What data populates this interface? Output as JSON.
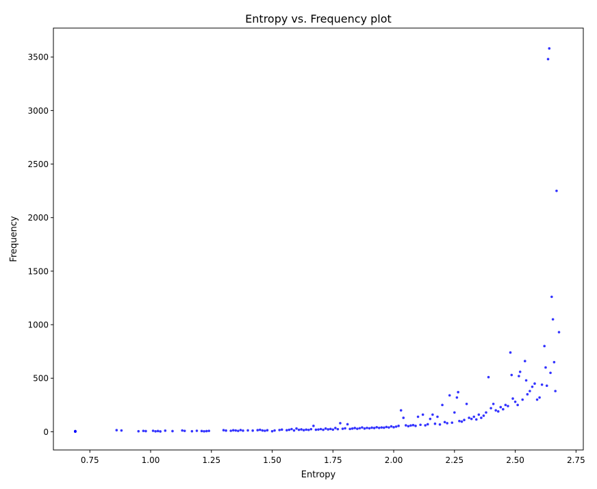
{
  "chart_data": {
    "type": "scatter",
    "title": "Entropy vs. Frequency plot",
    "xlabel": "Entropy",
    "ylabel": "Frequency",
    "xlim": [
      0.6,
      2.78
    ],
    "ylim": [
      -170,
      3770
    ],
    "xticks": [
      0.75,
      1.0,
      1.25,
      1.5,
      1.75,
      2.0,
      2.25,
      2.5,
      2.75
    ],
    "xtick_labels": [
      "0.75",
      "1.00",
      "1.25",
      "1.50",
      "1.75",
      "2.00",
      "2.25",
      "2.50",
      "2.75"
    ],
    "yticks": [
      0,
      500,
      1000,
      1500,
      2000,
      2500,
      3000,
      3500
    ],
    "ytick_labels": [
      "0",
      "500",
      "1000",
      "1500",
      "2000",
      "2500",
      "3000",
      "3500"
    ],
    "grid": false,
    "legend": "none",
    "marker_color": "#0000ff",
    "points": [
      [
        0.69,
        1
      ],
      [
        0.69,
        2
      ],
      [
        0.69,
        3
      ],
      [
        0.69,
        4
      ],
      [
        0.69,
        5
      ],
      [
        0.69,
        6
      ],
      [
        0.86,
        15
      ],
      [
        0.88,
        12
      ],
      [
        0.95,
        5
      ],
      [
        0.97,
        8
      ],
      [
        0.98,
        6
      ],
      [
        1.01,
        9
      ],
      [
        1.02,
        4
      ],
      [
        1.03,
        7
      ],
      [
        1.04,
        3
      ],
      [
        1.06,
        10
      ],
      [
        1.09,
        6
      ],
      [
        1.13,
        12
      ],
      [
        1.14,
        8
      ],
      [
        1.17,
        5
      ],
      [
        1.19,
        9
      ],
      [
        1.21,
        7
      ],
      [
        1.22,
        4
      ],
      [
        1.23,
        6
      ],
      [
        1.24,
        8
      ],
      [
        1.3,
        15
      ],
      [
        1.31,
        11
      ],
      [
        1.33,
        9
      ],
      [
        1.34,
        14
      ],
      [
        1.35,
        12
      ],
      [
        1.36,
        8
      ],
      [
        1.37,
        16
      ],
      [
        1.38,
        10
      ],
      [
        1.4,
        13
      ],
      [
        1.42,
        11
      ],
      [
        1.44,
        15
      ],
      [
        1.45,
        18
      ],
      [
        1.46,
        12
      ],
      [
        1.47,
        9
      ],
      [
        1.48,
        14
      ],
      [
        1.5,
        5
      ],
      [
        1.51,
        12
      ],
      [
        1.53,
        16
      ],
      [
        1.54,
        20
      ],
      [
        1.56,
        14
      ],
      [
        1.57,
        18
      ],
      [
        1.58,
        25
      ],
      [
        1.59,
        12
      ],
      [
        1.6,
        30
      ],
      [
        1.61,
        18
      ],
      [
        1.62,
        22
      ],
      [
        1.63,
        15
      ],
      [
        1.64,
        20
      ],
      [
        1.65,
        17
      ],
      [
        1.66,
        24
      ],
      [
        1.67,
        55
      ],
      [
        1.68,
        19
      ],
      [
        1.69,
        21
      ],
      [
        1.7,
        25
      ],
      [
        1.71,
        18
      ],
      [
        1.72,
        30
      ],
      [
        1.73,
        22
      ],
      [
        1.74,
        26
      ],
      [
        1.75,
        20
      ],
      [
        1.76,
        35
      ],
      [
        1.77,
        24
      ],
      [
        1.78,
        80
      ],
      [
        1.79,
        28
      ],
      [
        1.8,
        32
      ],
      [
        1.81,
        70
      ],
      [
        1.82,
        26
      ],
      [
        1.83,
        30
      ],
      [
        1.84,
        35
      ],
      [
        1.85,
        28
      ],
      [
        1.86,
        33
      ],
      [
        1.87,
        40
      ],
      [
        1.88,
        30
      ],
      [
        1.89,
        36
      ],
      [
        1.9,
        32
      ],
      [
        1.91,
        38
      ],
      [
        1.92,
        35
      ],
      [
        1.93,
        42
      ],
      [
        1.94,
        36
      ],
      [
        1.95,
        40
      ],
      [
        1.96,
        38
      ],
      [
        1.97,
        45
      ],
      [
        1.98,
        40
      ],
      [
        1.99,
        50
      ],
      [
        2.0,
        42
      ],
      [
        2.01,
        48
      ],
      [
        2.02,
        55
      ],
      [
        2.03,
        200
      ],
      [
        2.04,
        130
      ],
      [
        2.05,
        60
      ],
      [
        2.06,
        52
      ],
      [
        2.07,
        58
      ],
      [
        2.08,
        62
      ],
      [
        2.09,
        55
      ],
      [
        2.1,
        140
      ],
      [
        2.11,
        65
      ],
      [
        2.12,
        160
      ],
      [
        2.13,
        60
      ],
      [
        2.14,
        70
      ],
      [
        2.15,
        120
      ],
      [
        2.16,
        160
      ],
      [
        2.17,
        75
      ],
      [
        2.18,
        140
      ],
      [
        2.19,
        68
      ],
      [
        2.2,
        250
      ],
      [
        2.21,
        90
      ],
      [
        2.22,
        80
      ],
      [
        2.23,
        340
      ],
      [
        2.24,
        85
      ],
      [
        2.25,
        180
      ],
      [
        2.26,
        320
      ],
      [
        2.265,
        370
      ],
      [
        2.27,
        100
      ],
      [
        2.28,
        95
      ],
      [
        2.29,
        110
      ],
      [
        2.3,
        260
      ],
      [
        2.31,
        130
      ],
      [
        2.32,
        120
      ],
      [
        2.33,
        140
      ],
      [
        2.34,
        115
      ],
      [
        2.35,
        160
      ],
      [
        2.36,
        130
      ],
      [
        2.37,
        150
      ],
      [
        2.38,
        180
      ],
      [
        2.39,
        510
      ],
      [
        2.4,
        220
      ],
      [
        2.41,
        260
      ],
      [
        2.42,
        200
      ],
      [
        2.43,
        190
      ],
      [
        2.44,
        230
      ],
      [
        2.45,
        210
      ],
      [
        2.46,
        250
      ],
      [
        2.47,
        240
      ],
      [
        2.48,
        740
      ],
      [
        2.485,
        530
      ],
      [
        2.49,
        310
      ],
      [
        2.5,
        280
      ],
      [
        2.51,
        250
      ],
      [
        2.515,
        520
      ],
      [
        2.52,
        560
      ],
      [
        2.53,
        300
      ],
      [
        2.54,
        660
      ],
      [
        2.545,
        480
      ],
      [
        2.55,
        350
      ],
      [
        2.56,
        380
      ],
      [
        2.57,
        420
      ],
      [
        2.58,
        450
      ],
      [
        2.59,
        300
      ],
      [
        2.6,
        320
      ],
      [
        2.61,
        440
      ],
      [
        2.62,
        800
      ],
      [
        2.625,
        600
      ],
      [
        2.63,
        430
      ],
      [
        2.635,
        3480
      ],
      [
        2.64,
        3580
      ],
      [
        2.645,
        550
      ],
      [
        2.65,
        1260
      ],
      [
        2.655,
        1050
      ],
      [
        2.66,
        650
      ],
      [
        2.665,
        380
      ],
      [
        2.67,
        2250
      ],
      [
        2.68,
        930
      ]
    ]
  }
}
